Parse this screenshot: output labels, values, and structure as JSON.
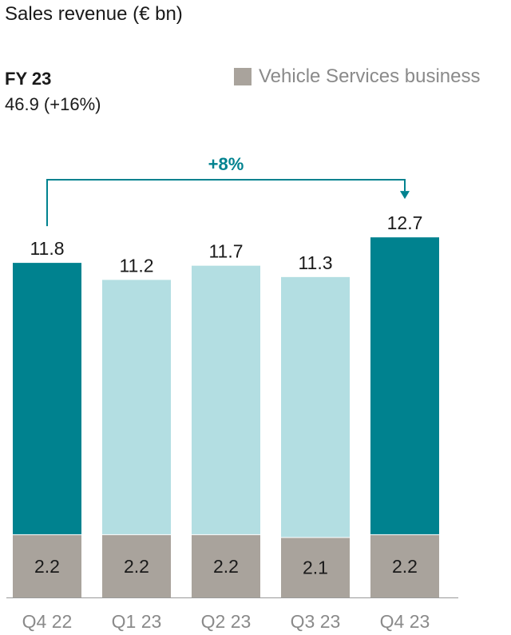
{
  "title": "Sales revenue (€ bn)",
  "fy": {
    "label": "FY 23",
    "value": "46.9 (+16%)"
  },
  "legend": {
    "label": "Vehicle Services business",
    "color": "#a9a39c"
  },
  "colors": {
    "highlight": "#00828f",
    "light": "#b3dee2",
    "base": "#a9a39c",
    "accent": "#00828f"
  },
  "chart_data": {
    "type": "bar",
    "stacked": true,
    "categories": [
      "Q4 22",
      "Q1 23",
      "Q2 23",
      "Q3 23",
      "Q4 23"
    ],
    "totals": [
      11.8,
      11.2,
      11.7,
      11.3,
      12.7
    ],
    "series": [
      {
        "name": "Vehicle Services business",
        "values": [
          2.2,
          2.2,
          2.2,
          2.1,
          2.2
        ]
      }
    ],
    "highlighted_categories": [
      "Q4 22",
      "Q4 23"
    ],
    "annotation": {
      "text": "+8%",
      "from": "Q4 22",
      "to": "Q4 23"
    },
    "title": "Sales revenue (€ bn)",
    "xlabel": "",
    "ylabel": ""
  }
}
